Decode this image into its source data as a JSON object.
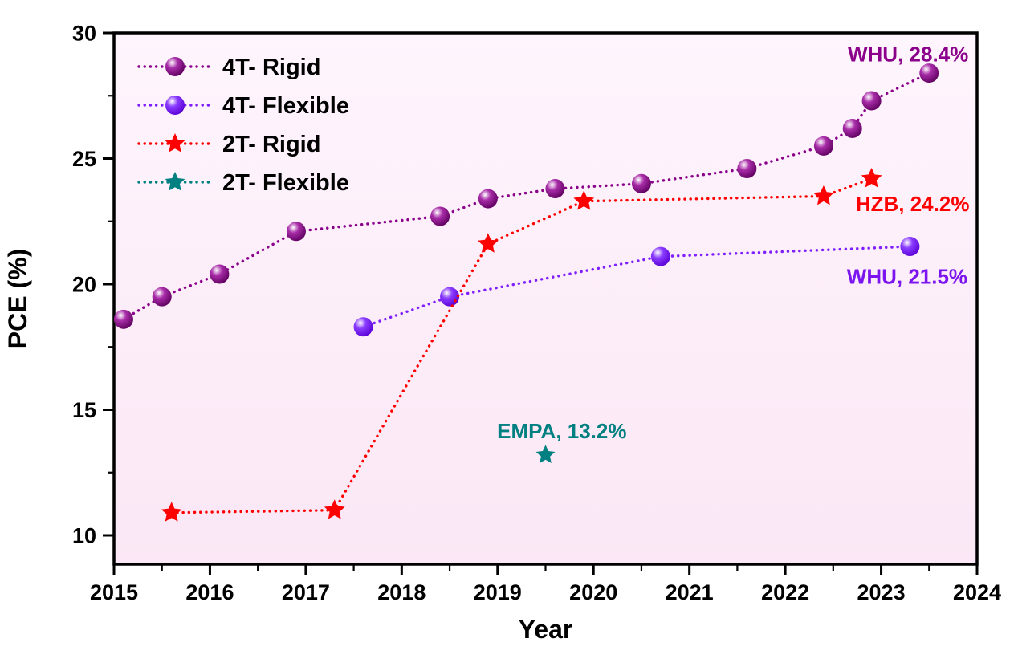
{
  "chart_data": {
    "type": "line",
    "title": "",
    "xlabel": "Year",
    "ylabel": "PCE (%)",
    "xlim": [
      2015,
      2024
    ],
    "ylim": [
      8.85,
      30
    ],
    "x_major_ticks": [
      2015,
      2016,
      2017,
      2018,
      2019,
      2020,
      2021,
      2022,
      2023,
      2024
    ],
    "x_minor_step": 0.5,
    "y_major_ticks": [
      10,
      15,
      20,
      25,
      30
    ],
    "y_minor_step": 2.5,
    "grid": false,
    "legend_position": "top-left",
    "line_style": "dotted",
    "colors": {
      "axis": "#000000",
      "tick_label": "#000000",
      "plot_bg_top": "#fef5fd",
      "plot_bg_bottom": "#fbe7f5",
      "figure_bg": "#ffffff"
    },
    "series": [
      {
        "name": "4T- Rigid",
        "marker": "sphere",
        "color": "#8b008b",
        "marker_gradient": [
          "#ffffff",
          "#a82ca8",
          "#5e005e"
        ],
        "points": [
          [
            2015.1,
            18.6
          ],
          [
            2015.5,
            19.5
          ],
          [
            2016.1,
            20.4
          ],
          [
            2016.9,
            22.1
          ],
          [
            2018.4,
            22.7
          ],
          [
            2018.9,
            23.4
          ],
          [
            2019.6,
            23.8
          ],
          [
            2020.5,
            24.0
          ],
          [
            2021.6,
            24.6
          ],
          [
            2022.4,
            25.5
          ],
          [
            2022.7,
            26.2
          ],
          [
            2022.9,
            27.3
          ],
          [
            2023.5,
            28.4
          ]
        ]
      },
      {
        "name": "4T- Flexible",
        "marker": "sphere",
        "color": "#7f1fff",
        "marker_gradient": [
          "#ffffff",
          "#8a3cff",
          "#5a00d6"
        ],
        "points": [
          [
            2017.6,
            18.3
          ],
          [
            2018.5,
            19.5
          ],
          [
            2020.7,
            21.1
          ],
          [
            2023.3,
            21.5
          ]
        ]
      },
      {
        "name": "2T- Rigid",
        "marker": "star",
        "color": "#ff0000",
        "points": [
          [
            2015.6,
            10.9
          ],
          [
            2017.3,
            11.0
          ],
          [
            2018.9,
            21.6
          ],
          [
            2019.9,
            23.3
          ],
          [
            2022.4,
            23.5
          ],
          [
            2022.9,
            24.2
          ]
        ]
      },
      {
        "name": "2T- Flexible",
        "marker": "star",
        "color": "#008080",
        "points": [
          [
            2019.5,
            13.2
          ]
        ]
      }
    ],
    "annotations": [
      {
        "text": "WHU, 28.4%",
        "color": "#8b008b",
        "x": 2023.91,
        "y": 29.15,
        "anchor": "end"
      },
      {
        "text": "HZB, 24.2%",
        "color": "#ff0000",
        "x": 2023.92,
        "y": 23.2,
        "anchor": "end"
      },
      {
        "text": "WHU, 21.5%",
        "color": "#7c14f0",
        "x": 2023.9,
        "y": 20.3,
        "anchor": "end"
      },
      {
        "text": "EMPA, 13.2%",
        "color": "#008080",
        "x": 2019.67,
        "y": 14.15,
        "anchor": "middle"
      }
    ]
  }
}
